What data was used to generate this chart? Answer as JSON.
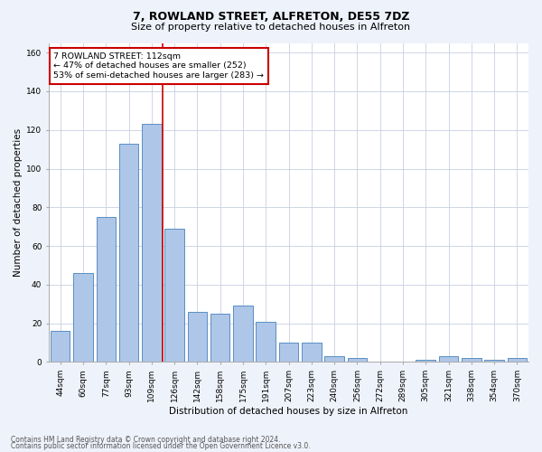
{
  "title1": "7, ROWLAND STREET, ALFRETON, DE55 7DZ",
  "title2": "Size of property relative to detached houses in Alfreton",
  "xlabel": "Distribution of detached houses by size in Alfreton",
  "ylabel": "Number of detached properties",
  "bar_labels": [
    "44sqm",
    "60sqm",
    "77sqm",
    "93sqm",
    "109sqm",
    "126sqm",
    "142sqm",
    "158sqm",
    "175sqm",
    "191sqm",
    "207sqm",
    "223sqm",
    "240sqm",
    "256sqm",
    "272sqm",
    "289sqm",
    "305sqm",
    "321sqm",
    "338sqm",
    "354sqm",
    "370sqm"
  ],
  "bar_heights": [
    16,
    46,
    75,
    113,
    123,
    69,
    26,
    25,
    29,
    21,
    10,
    10,
    3,
    2,
    0,
    0,
    1,
    3,
    2,
    1,
    2
  ],
  "bar_color": "#aec6e8",
  "bar_edge_color": "#5a8fc2",
  "property_label": "7 ROWLAND STREET: 112sqm",
  "annotation_line1": "← 47% of detached houses are smaller (252)",
  "annotation_line2": "53% of semi-detached houses are larger (283) →",
  "vline_color": "#cc0000",
  "vline_x_idx": 4.5,
  "ylim": [
    0,
    165
  ],
  "yticks": [
    0,
    20,
    40,
    60,
    80,
    100,
    120,
    140,
    160
  ],
  "footer1": "Contains HM Land Registry data © Crown copyright and database right 2024.",
  "footer2": "Contains public sector information licensed under the Open Government Licence v3.0.",
  "bg_color": "#eef2fa",
  "plot_bg_color": "#ffffff",
  "grid_color": "#c8d0e0",
  "title1_fontsize": 9,
  "title2_fontsize": 8,
  "ylabel_fontsize": 7.5,
  "xlabel_fontsize": 7.5,
  "tick_fontsize": 6.5,
  "annot_fontsize": 6.8,
  "footer_fontsize": 5.5
}
